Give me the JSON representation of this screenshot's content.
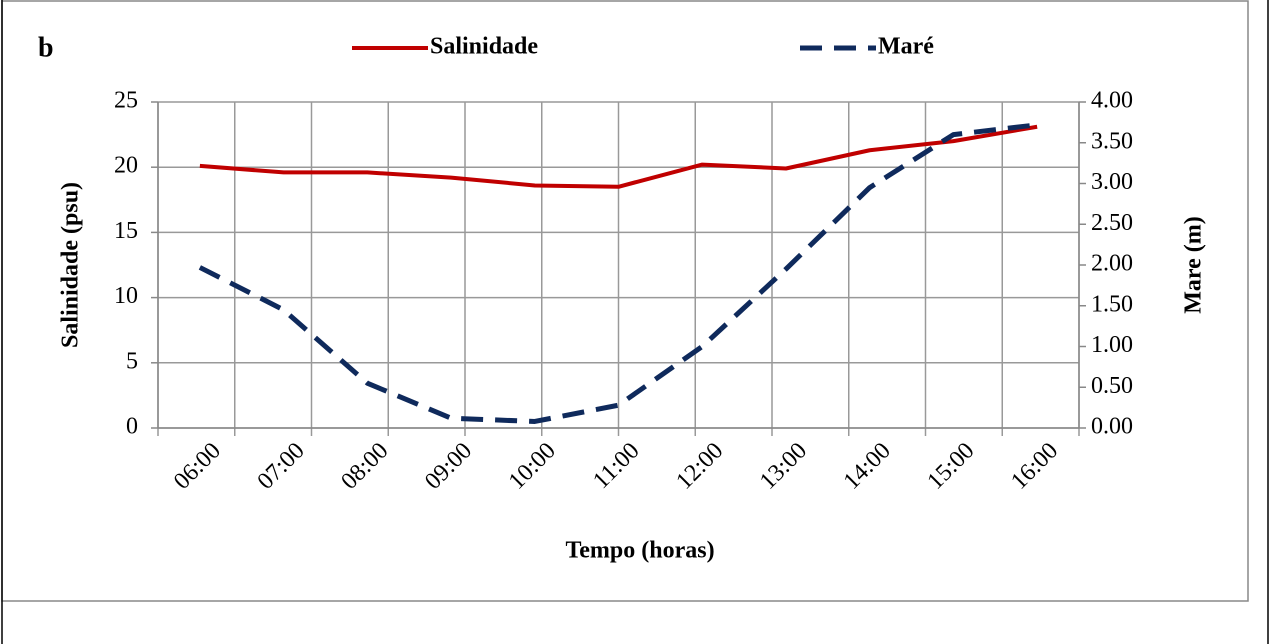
{
  "chart_data": {
    "type": "line",
    "annotation": "b",
    "xlabel": "Tempo (horas)",
    "ylabel": "Salinidade (psu)",
    "y2label": "Mare (m)",
    "categories": [
      "06:00",
      "07:00",
      "08:00",
      "09:00",
      "10:00",
      "11:00",
      "12:00",
      "13:00",
      "14:00",
      "15:00",
      "16:00"
    ],
    "series": [
      {
        "name": "Salinidade",
        "color": "#c00000",
        "dash": "solid",
        "values": [
          20.1,
          19.6,
          19.6,
          19.2,
          18.6,
          18.5,
          20.2,
          19.9,
          21.3,
          22.0,
          23.1
        ]
      },
      {
        "name": "Maré",
        "color": "#0f2a5c",
        "dash": "dashed",
        "axis": "y2",
        "values": [
          1.97,
          1.45,
          0.55,
          0.12,
          0.08,
          0.28,
          1.0,
          1.95,
          2.95,
          3.6,
          3.72
        ]
      }
    ],
    "ylim": [
      0,
      25
    ],
    "yticks": [
      0,
      5,
      10,
      15,
      20,
      25
    ],
    "y2lim": [
      0,
      4
    ],
    "y2ticks": [
      {
        "value": 0,
        "label": "0.00"
      },
      {
        "value": 0.5,
        "label": "0.50"
      },
      {
        "value": 1,
        "label": "1.00"
      },
      {
        "value": 1.5,
        "label": "1.50"
      },
      {
        "value": 2,
        "label": "2.00"
      },
      {
        "value": 2.5,
        "label": "2.50"
      },
      {
        "value": 3,
        "label": "3.00"
      },
      {
        "value": 3.5,
        "label": "3.50"
      },
      {
        "value": 4,
        "label": "4.00"
      }
    ],
    "grid": true,
    "legend": "top"
  }
}
